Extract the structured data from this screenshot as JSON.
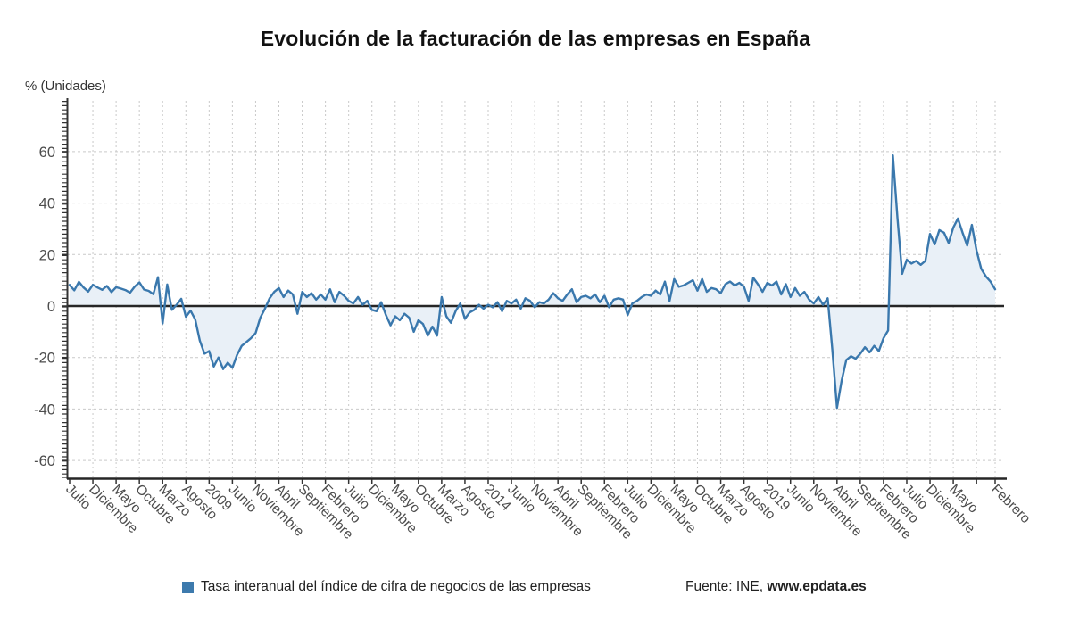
{
  "chart": {
    "title": "Evolución de la facturación de las empresas en España",
    "y_unit": "% (Unidades)"
  },
  "legend": {
    "series_label": "Tasa interanual del índice de cifra de negocios de las empresas",
    "source_prefix": "Fuente: INE, ",
    "source_site": "www.epdata.es"
  },
  "chart_data": {
    "type": "area",
    "series_name": "Tasa interanual del índice de cifra de negocios de las empresas",
    "unit": "%",
    "frequency": "monthly",
    "x_start": "Julio 2006",
    "x_end": "Febrero 2023",
    "title": "Evolución de la facturación de las empresas en España",
    "ylabel": "% (Unidades)",
    "ylim": [
      -67,
      79
    ],
    "y_ticks": [
      60,
      40,
      20,
      0,
      -20,
      -40,
      -60
    ],
    "grid": true,
    "legend_position": "bottom",
    "x_tick_labels": [
      {
        "i": 0,
        "t": "Julio"
      },
      {
        "i": 5,
        "t": "Diciembre"
      },
      {
        "i": 10,
        "t": "Mayo"
      },
      {
        "i": 15,
        "t": "Octubre"
      },
      {
        "i": 20,
        "t": "Marzo"
      },
      {
        "i": 25,
        "t": "Agosto"
      },
      {
        "i": 30,
        "t": "2009"
      },
      {
        "i": 35,
        "t": "Junio"
      },
      {
        "i": 40,
        "t": "Noviembre"
      },
      {
        "i": 45,
        "t": "Abril"
      },
      {
        "i": 50,
        "t": "Septiembre"
      },
      {
        "i": 55,
        "t": "Febrero"
      },
      {
        "i": 60,
        "t": "Julio"
      },
      {
        "i": 65,
        "t": "Diciembre"
      },
      {
        "i": 70,
        "t": "Mayo"
      },
      {
        "i": 75,
        "t": "Octubre"
      },
      {
        "i": 80,
        "t": "Marzo"
      },
      {
        "i": 85,
        "t": "Agosto"
      },
      {
        "i": 90,
        "t": "2014"
      },
      {
        "i": 95,
        "t": "Junio"
      },
      {
        "i": 100,
        "t": "Noviembre"
      },
      {
        "i": 105,
        "t": "Abril"
      },
      {
        "i": 110,
        "t": "Septiembre"
      },
      {
        "i": 115,
        "t": "Febrero"
      },
      {
        "i": 120,
        "t": "Julio"
      },
      {
        "i": 125,
        "t": "Diciembre"
      },
      {
        "i": 130,
        "t": "Mayo"
      },
      {
        "i": 135,
        "t": "Octubre"
      },
      {
        "i": 140,
        "t": "Marzo"
      },
      {
        "i": 145,
        "t": "Agosto"
      },
      {
        "i": 150,
        "t": "2019"
      },
      {
        "i": 155,
        "t": "Junio"
      },
      {
        "i": 160,
        "t": "Noviembre"
      },
      {
        "i": 165,
        "t": "Abril"
      },
      {
        "i": 170,
        "t": "Septiembre"
      },
      {
        "i": 175,
        "t": "Febrero"
      },
      {
        "i": 180,
        "t": "Julio"
      },
      {
        "i": 185,
        "t": "Diciembre"
      },
      {
        "i": 190,
        "t": "Mayo"
      },
      {
        "i": 199,
        "t": "Febrero"
      }
    ],
    "values": [
      8.2,
      6.1,
      9.4,
      7.2,
      5.6,
      8.3,
      7.2,
      6.3,
      7.8,
      5.4,
      7.3,
      6.8,
      6.2,
      5.2,
      7.6,
      9.2,
      6.4,
      5.9,
      4.6,
      11.2,
      -6.8,
      8.4,
      -1.5,
      0.5,
      2.8,
      -4.2,
      -1.8,
      -5.2,
      -13.5,
      -18.5,
      -17.5,
      -23.5,
      -20.0,
      -24.5,
      -22.0,
      -24.0,
      -19.0,
      -15.5,
      -14.0,
      -12.5,
      -10.5,
      -4.5,
      -1.0,
      3.0,
      5.5,
      7.0,
      3.5,
      6.0,
      4.5,
      -3.0,
      5.5,
      3.5,
      5.0,
      2.5,
      4.5,
      2.5,
      6.5,
      1.5,
      5.5,
      4.0,
      2.0,
      1.0,
      3.5,
      0.5,
      2.0,
      -1.5,
      -2.0,
      1.5,
      -3.5,
      -7.5,
      -4.0,
      -5.5,
      -3.0,
      -4.5,
      -10.0,
      -5.5,
      -7.0,
      -11.5,
      -8.0,
      -11.5,
      3.5,
      -4.0,
      -6.5,
      -2.0,
      1.0,
      -5.0,
      -2.5,
      -1.5,
      0.5,
      -1.0,
      0.5,
      -0.5,
      1.5,
      -2.0,
      2.0,
      1.0,
      2.5,
      -1.0,
      3.0,
      2.0,
      -0.5,
      1.5,
      1.0,
      2.5,
      5.0,
      3.0,
      2.0,
      4.5,
      6.5,
      1.5,
      3.5,
      4.0,
      3.0,
      4.5,
      1.5,
      4.0,
      -0.5,
      2.5,
      3.0,
      2.5,
      -3.5,
      1.0,
      2.0,
      3.5,
      4.5,
      4.0,
      6.0,
      4.5,
      9.5,
      2.0,
      10.5,
      7.5,
      8.0,
      9.0,
      10.0,
      6.0,
      10.5,
      5.5,
      7.0,
      6.5,
      5.0,
      8.5,
      9.5,
      8.0,
      9.0,
      7.5,
      2.0,
      11.0,
      8.5,
      5.5,
      9.0,
      8.0,
      9.5,
      4.5,
      8.5,
      3.5,
      7.0,
      4.0,
      5.5,
      2.5,
      1.0,
      3.5,
      0.5,
      3.0,
      -17.0,
      -39.5,
      -29.0,
      -21.0,
      -19.5,
      -20.5,
      -18.5,
      -16.0,
      -18.0,
      -15.5,
      -17.5,
      -12.5,
      -9.5,
      58.5,
      34.0,
      12.5,
      18.0,
      16.5,
      17.5,
      16.0,
      17.5,
      28.0,
      24.0,
      29.5,
      28.5,
      24.5,
      30.5,
      34.0,
      28.5,
      23.5,
      31.5,
      21.5,
      14.5,
      11.5,
      9.5,
      6.5
    ],
    "colors": {
      "line": "#3a78ad",
      "fill": "#e9f0f7",
      "legend_swatch": "#3d7aad",
      "zero_line": "#262626",
      "axis": "#333333",
      "grid": "#c9c9c9",
      "axis_text": "#4d4d4d",
      "title_text": "#111111"
    }
  }
}
